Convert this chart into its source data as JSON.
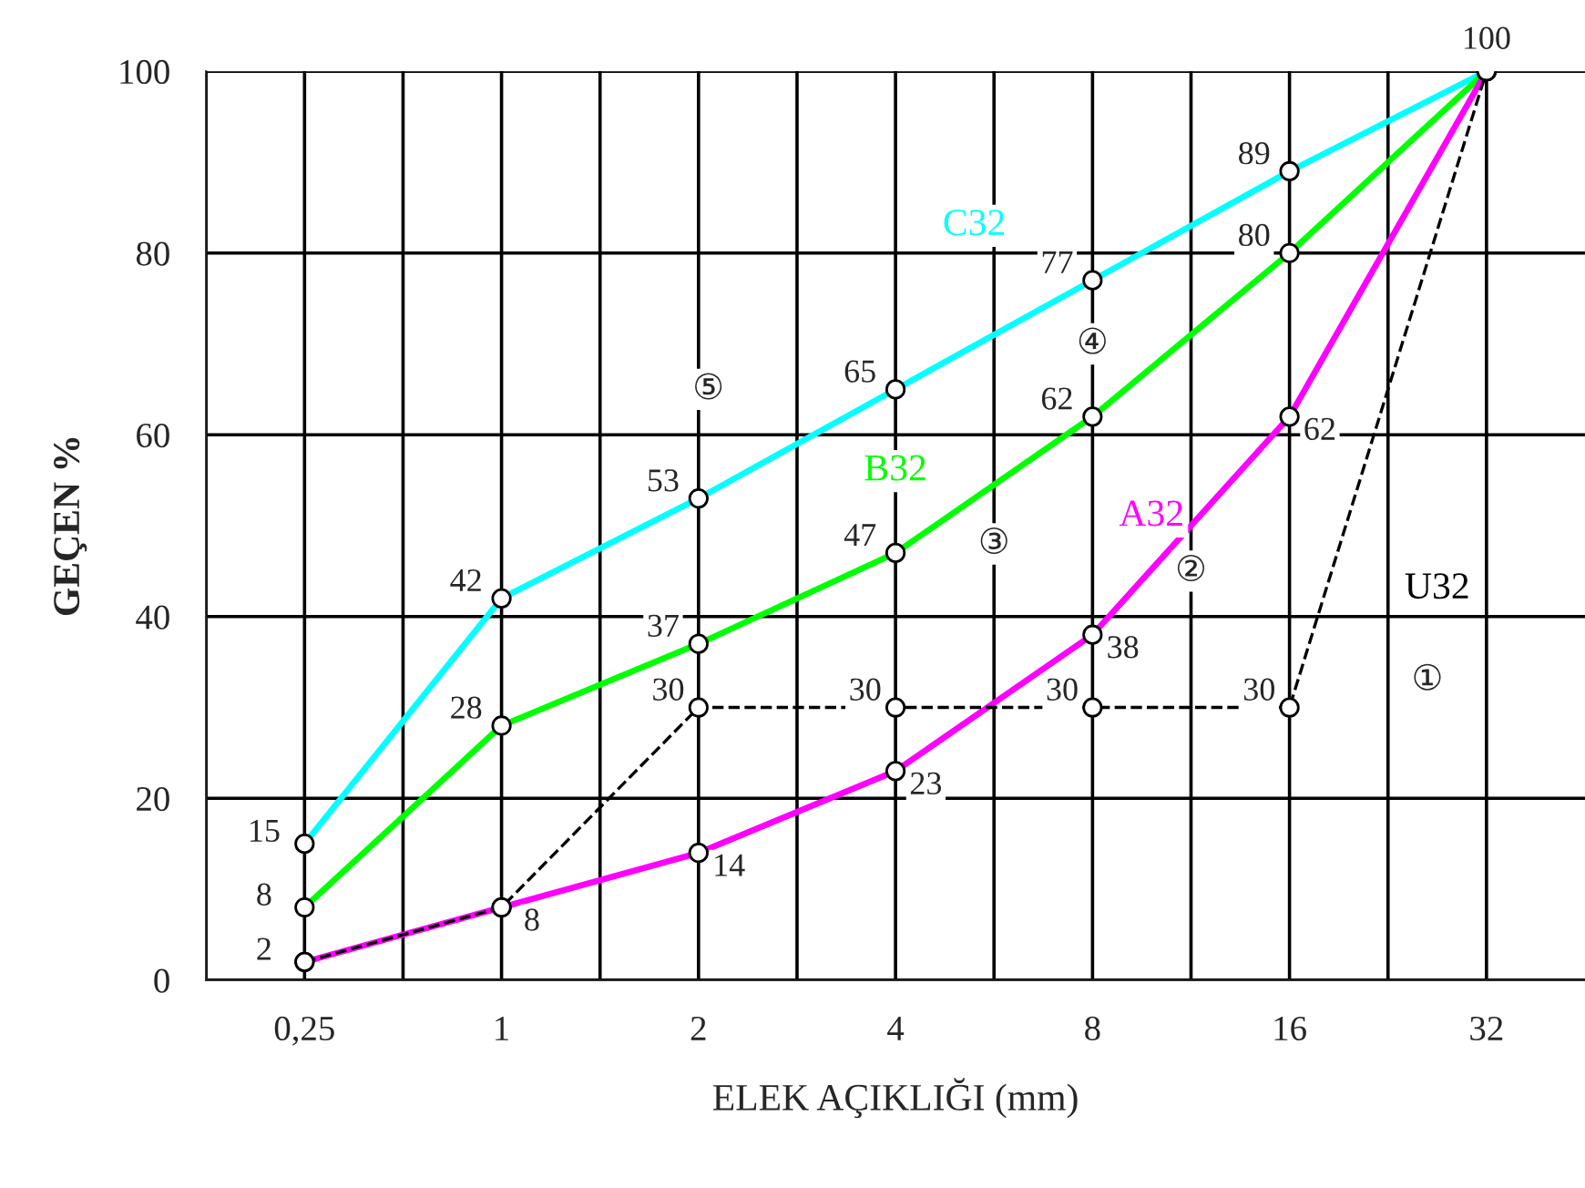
{
  "chart_data": {
    "type": "line",
    "xlabel": "ELEK AÇIKLIĞI (mm)",
    "ylabel": "GEÇEN %",
    "categories": [
      "0,25",
      "1",
      "2",
      "4",
      "8",
      "16",
      "32"
    ],
    "series": [
      {
        "name": "C32",
        "color": "#00ffff",
        "values": [
          15,
          42,
          53,
          65,
          77,
          89,
          100
        ],
        "value_labels": [
          "15",
          "42",
          "53",
          "65",
          "77",
          "89",
          null
        ]
      },
      {
        "name": "B32",
        "color": "#00ff00",
        "values": [
          8,
          28,
          37,
          47,
          62,
          80,
          100
        ],
        "value_labels": [
          "8",
          "28",
          "37",
          "47",
          "62",
          "80",
          null
        ]
      },
      {
        "name": "A32",
        "color": "#ff00ff",
        "values": [
          2,
          8,
          14,
          23,
          38,
          62,
          100
        ],
        "value_labels": [
          "2",
          "8",
          "14",
          "23",
          "38",
          "62",
          "100"
        ]
      },
      {
        "name": "U32",
        "color": "#000000",
        "line_style": "dashed",
        "values": [
          2,
          8,
          30,
          30,
          30,
          30,
          100
        ],
        "value_labels": [
          null,
          null,
          "30",
          "30",
          "30",
          "30",
          null
        ]
      }
    ],
    "annotations": [
      "①",
      "②",
      "③",
      "④",
      "⑤"
    ],
    "ylim": [
      0,
      100
    ],
    "yticks": [
      0,
      20,
      40,
      60,
      80,
      100
    ],
    "grid": true,
    "legend": false,
    "marker": "circle",
    "line_style": "solid"
  }
}
